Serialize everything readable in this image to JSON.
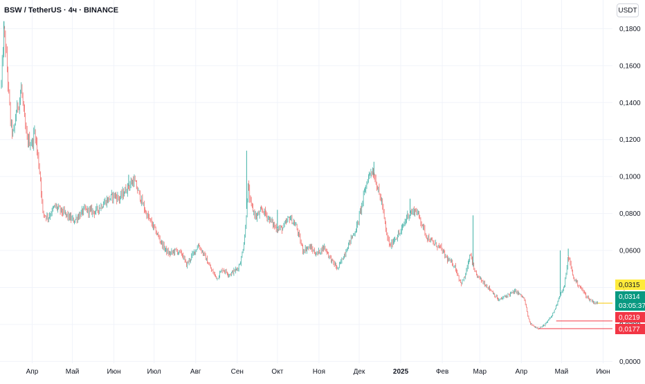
{
  "header": {
    "symbol_title": "BSW / TetherUS · 4ч · BINANCE",
    "currency_button": "USDT"
  },
  "colors": {
    "up": "#26a69a",
    "down": "#ef5350",
    "grid": "#f0f3fa",
    "axis_text": "#131722",
    "last_price_bg": "#089981",
    "yellow_label": "#ffeb3b",
    "red_label": "#f23645"
  },
  "chart_data": {
    "type": "candlestick",
    "title": "BSW / TetherUS · 4ч · BINANCE",
    "xlabel": "",
    "ylabel": "",
    "ylim": [
      -0.001,
      0.1955
    ],
    "y_ticks": [
      "0,0000",
      "0,0200",
      "0,0400",
      "0,0600",
      "0,0800",
      "0,1000",
      "0,1200",
      "0,1400",
      "0,1600",
      "0,1800"
    ],
    "y_tick_values": [
      0,
      0.02,
      0.04,
      0.06,
      0.08,
      0.1,
      0.12,
      0.14,
      0.16,
      0.18
    ],
    "x_ticks": [
      "Апр",
      "Май",
      "Июн",
      "Июл",
      "Авг",
      "Сен",
      "Окт",
      "Ноя",
      "Дек",
      "2025",
      "Фев",
      "Мар",
      "Апр",
      "Май",
      "Июн"
    ],
    "x_tick_bold": [
      false,
      false,
      false,
      false,
      false,
      false,
      false,
      false,
      false,
      true,
      false,
      false,
      false,
      false,
      false
    ],
    "grid": true,
    "price_path": [
      [
        "2024-03-09",
        0.15
      ],
      [
        "2024-03-11",
        0.18
      ],
      [
        "2024-03-13",
        0.162
      ],
      [
        "2024-03-16",
        0.128
      ],
      [
        "2024-03-18",
        0.122
      ],
      [
        "2024-03-20",
        0.135
      ],
      [
        "2024-03-22",
        0.14
      ],
      [
        "2024-03-24",
        0.148
      ],
      [
        "2024-03-26",
        0.132
      ],
      [
        "2024-03-28",
        0.12
      ],
      [
        "2024-04-01",
        0.118
      ],
      [
        "2024-04-03",
        0.125
      ],
      [
        "2024-04-05",
        0.112
      ],
      [
        "2024-04-07",
        0.1
      ],
      [
        "2024-04-09",
        0.08
      ],
      [
        "2024-04-13",
        0.078
      ],
      [
        "2024-04-18",
        0.084
      ],
      [
        "2024-04-25",
        0.08
      ],
      [
        "2024-05-02",
        0.076
      ],
      [
        "2024-05-10",
        0.082
      ],
      [
        "2024-05-18",
        0.081
      ],
      [
        "2024-05-25",
        0.086
      ],
      [
        "2024-06-01",
        0.09
      ],
      [
        "2024-06-05",
        0.088
      ],
      [
        "2024-06-12",
        0.095
      ],
      [
        "2024-06-16",
        0.098
      ],
      [
        "2024-06-20",
        0.09
      ],
      [
        "2024-06-25",
        0.08
      ],
      [
        "2024-07-01",
        0.072
      ],
      [
        "2024-07-08",
        0.062
      ],
      [
        "2024-07-12",
        0.058
      ],
      [
        "2024-07-17",
        0.06
      ],
      [
        "2024-07-22",
        0.058
      ],
      [
        "2024-07-25",
        0.052
      ],
      [
        "2024-07-30",
        0.058
      ],
      [
        "2024-08-03",
        0.063
      ],
      [
        "2024-08-07",
        0.058
      ],
      [
        "2024-08-13",
        0.049
      ],
      [
        "2024-08-17",
        0.045
      ],
      [
        "2024-08-21",
        0.05
      ],
      [
        "2024-08-26",
        0.047
      ],
      [
        "2024-09-01",
        0.05
      ],
      [
        "2024-09-04",
        0.055
      ],
      [
        "2024-09-07",
        0.07
      ],
      [
        "2024-09-09",
        0.095
      ],
      [
        "2024-09-11",
        0.085
      ],
      [
        "2024-09-15",
        0.078
      ],
      [
        "2024-09-20",
        0.082
      ],
      [
        "2024-09-24",
        0.078
      ],
      [
        "2024-09-30",
        0.072
      ],
      [
        "2024-10-05",
        0.072
      ],
      [
        "2024-10-10",
        0.078
      ],
      [
        "2024-10-15",
        0.073
      ],
      [
        "2024-10-20",
        0.06
      ],
      [
        "2024-10-25",
        0.062
      ],
      [
        "2024-10-30",
        0.058
      ],
      [
        "2024-11-05",
        0.062
      ],
      [
        "2024-11-10",
        0.055
      ],
      [
        "2024-11-15",
        0.05
      ],
      [
        "2024-11-20",
        0.058
      ],
      [
        "2024-11-24",
        0.065
      ],
      [
        "2024-11-29",
        0.072
      ],
      [
        "2024-12-03",
        0.085
      ],
      [
        "2024-12-07",
        0.098
      ],
      [
        "2024-12-10",
        0.104
      ],
      [
        "2024-12-13",
        0.099
      ],
      [
        "2024-12-16",
        0.09
      ],
      [
        "2024-12-18",
        0.086
      ],
      [
        "2024-12-21",
        0.07
      ],
      [
        "2024-12-24",
        0.062
      ],
      [
        "2024-12-27",
        0.066
      ],
      [
        "2025-01-01",
        0.07
      ],
      [
        "2025-01-06",
        0.079
      ],
      [
        "2025-01-12",
        0.082
      ],
      [
        "2025-01-15",
        0.078
      ],
      [
        "2025-01-20",
        0.068
      ],
      [
        "2025-01-25",
        0.064
      ],
      [
        "2025-01-30",
        0.062
      ],
      [
        "2025-02-05",
        0.055
      ],
      [
        "2025-02-10",
        0.052
      ],
      [
        "2025-02-15",
        0.042
      ],
      [
        "2025-02-18",
        0.046
      ],
      [
        "2025-02-22",
        0.058
      ],
      [
        "2025-02-25",
        0.048
      ],
      [
        "2025-03-02",
        0.044
      ],
      [
        "2025-03-10",
        0.038
      ],
      [
        "2025-03-15",
        0.033
      ],
      [
        "2025-03-22",
        0.036
      ],
      [
        "2025-03-28",
        0.038
      ],
      [
        "2025-04-03",
        0.034
      ],
      [
        "2025-04-07",
        0.021
      ],
      [
        "2025-04-10",
        0.019
      ],
      [
        "2025-04-14",
        0.018
      ],
      [
        "2025-04-17",
        0.019
      ],
      [
        "2025-04-20",
        0.021
      ],
      [
        "2025-04-24",
        0.025
      ],
      [
        "2025-04-27",
        0.03
      ],
      [
        "2025-04-29",
        0.035
      ],
      [
        "2025-05-03",
        0.04
      ],
      [
        "2025-05-06",
        0.057
      ],
      [
        "2025-05-10",
        0.045
      ],
      [
        "2025-05-13",
        0.042
      ],
      [
        "2025-05-17",
        0.038
      ],
      [
        "2025-05-21",
        0.034
      ],
      [
        "2025-05-25",
        0.032
      ],
      [
        "2025-05-28",
        0.0314
      ]
    ],
    "spikes": [
      [
        "2024-03-11",
        0.184
      ],
      [
        "2024-09-08",
        0.114
      ],
      [
        "2024-06-12",
        0.101
      ],
      [
        "2024-12-12",
        0.108
      ],
      [
        "2025-02-24",
        0.079
      ],
      [
        "2025-04-30",
        0.06
      ],
      [
        "2025-05-06",
        0.061
      ],
      [
        "2024-10-01",
        0.082
      ],
      [
        "2025-01-08",
        0.088
      ]
    ],
    "price_labels": [
      {
        "text": "0,0315",
        "value": 0.0315,
        "kind": "yellow"
      },
      {
        "text": "0,0314",
        "sub": "03:05:37",
        "value": 0.0314,
        "kind": "last"
      },
      {
        "text": "0,0219",
        "value": 0.0219,
        "kind": "red"
      },
      {
        "text": "0,0177",
        "value": 0.0177,
        "kind": "red"
      }
    ],
    "hlines": [
      {
        "value": 0.0219,
        "from": "2025-04-27",
        "kind": "red"
      },
      {
        "value": 0.0177,
        "from": "2025-04-14",
        "kind": "red"
      },
      {
        "value": 0.0315,
        "from": "2025-05-28",
        "kind": "yellow"
      }
    ]
  }
}
